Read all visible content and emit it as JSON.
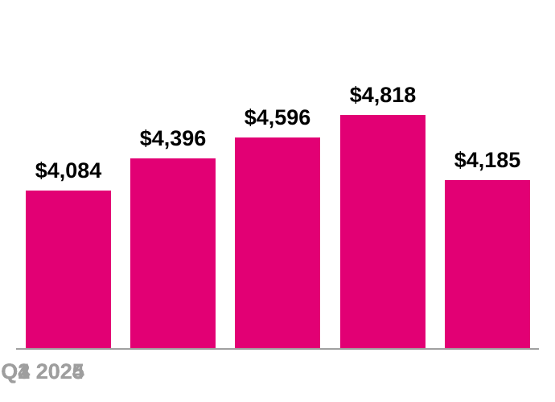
{
  "chart_data": {
    "type": "bar",
    "title": "",
    "xlabel": "",
    "ylabel": "",
    "categories": [
      "Q4 2024",
      "Q1 2025",
      "Q2 2025",
      "Q3 2025",
      "Q4 2025"
    ],
    "values": [
      4084,
      4396,
      4596,
      4818,
      4185
    ],
    "value_labels": [
      "$4,084",
      "$4,396",
      "$4,596",
      "$4,818",
      "$4,185"
    ],
    "baseline_value": 2550,
    "grid": false,
    "legend": false,
    "colors": {
      "bar": "#E20074",
      "value_label": "#000000",
      "category_label": "#9E9E9E",
      "axis_line": "#A0A0A0",
      "background": "#FFFFFF"
    }
  }
}
